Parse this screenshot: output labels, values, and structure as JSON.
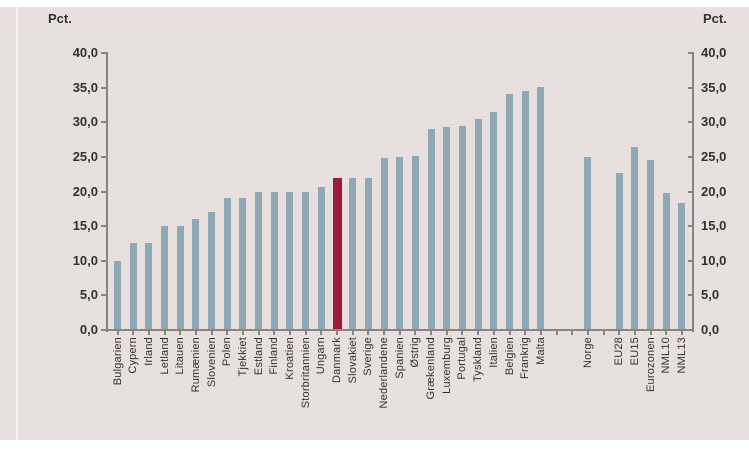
{
  "chart": {
    "unit_label_left": "Pct.",
    "unit_label_right": "Pct.",
    "panel_background": "#e7e0de",
    "axis_color": "#8a8480",
    "text_color": "#323232",
    "bar_color": "#8ea8b5",
    "highlight_color": "#9d1c3e"
  },
  "chart_data": {
    "type": "bar",
    "title": "",
    "xlabel": "",
    "ylabel": "Pct.",
    "ylim": [
      0,
      40
    ],
    "ytick_step": 5,
    "ytick_values": [
      40,
      35,
      30,
      25,
      20,
      15,
      10,
      5,
      0
    ],
    "ytick_labels": [
      "40,0",
      "35,0",
      "30,0",
      "25,0",
      "20,0",
      "15,0",
      "10,0",
      "5,0",
      "0,0"
    ],
    "grid": false,
    "legend": "none",
    "dual_axis": true,
    "categories": [
      "Bulgarien",
      "Cypern",
      "Irland",
      "Letland",
      "Litauen",
      "Rumænien",
      "Slovenien",
      "Polen",
      "Tjekkiet",
      "Estland",
      "Finland",
      "Kroatien",
      "Storbritannien",
      "Ungarn",
      "Danmark",
      "Slovakiet",
      "Sverige",
      "Nederlandene",
      "Spanien",
      "Østrig",
      "Grækenland",
      "Luxemburg",
      "Portugal",
      "Tyskland",
      "Italien",
      "Belgien",
      "Frankrig",
      "Malta",
      "Norge",
      "EU28",
      "EU15",
      "Eurozonen",
      "NML10",
      "NML13"
    ],
    "values": [
      10.0,
      12.5,
      12.5,
      15.0,
      15.0,
      16.0,
      17.0,
      19.0,
      19.0,
      20.0,
      20.0,
      20.0,
      19.9,
      20.6,
      22.0,
      21.9,
      21.9,
      24.9,
      25.0,
      25.1,
      29.0,
      29.3,
      29.5,
      30.4,
      31.5,
      34.1,
      34.5,
      35.1,
      25.0,
      22.7,
      26.4,
      24.6,
      19.8,
      18.4
    ],
    "slots": [
      0,
      1,
      2,
      3,
      4,
      5,
      6,
      7,
      8,
      9,
      10,
      11,
      12,
      13,
      14,
      15,
      16,
      17,
      18,
      19,
      20,
      21,
      22,
      23,
      24,
      25,
      26,
      27,
      30,
      32,
      33,
      34,
      35,
      36
    ],
    "highlight_category": "Danmark"
  }
}
